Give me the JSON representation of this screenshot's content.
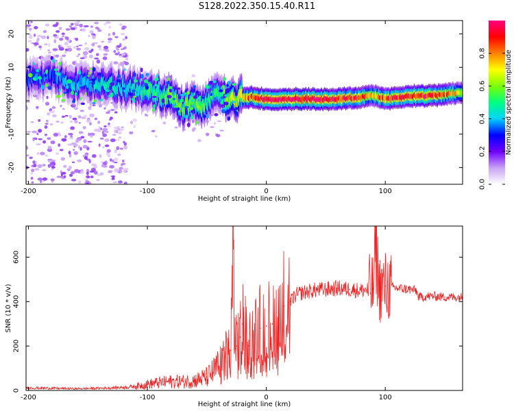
{
  "title": "S128.2022.350.15.40.R11",
  "chart_data": [
    {
      "type": "heatmap",
      "xlabel": "Height of straight line (km)",
      "ylabel": "Frequency (Hz)",
      "xlim": [
        -202,
        165
      ],
      "ylim": [
        -25,
        24
      ],
      "x_ticks": [
        -200,
        -100,
        0,
        100
      ],
      "y_ticks": [
        -20,
        -10,
        0,
        10,
        20
      ],
      "colorbar": {
        "label": "Normalized spectral amplitude",
        "range": [
          0,
          1
        ],
        "ticks": [
          "0.0",
          "0.2",
          "0.4",
          "0.6",
          "0.8"
        ],
        "colors": [
          "#ffffff",
          "#c9a2f5",
          "#7000ff",
          "#0000ff",
          "#00d2ff",
          "#00ff80",
          "#7cff00",
          "#ffff00",
          "#ff8000",
          "#ff0000",
          "#ff0080"
        ]
      },
      "ridge": {
        "x": [
          -200,
          -180,
          -160,
          -140,
          -120,
          -100,
          -90,
          -80,
          -70,
          -60,
          -50,
          -40,
          -30,
          -20,
          -10,
          0,
          20,
          40,
          60,
          80,
          90,
          100,
          120,
          140,
          165
        ],
        "freq_hz": [
          6,
          7,
          5,
          5,
          4,
          3,
          2,
          1,
          -2,
          -1,
          -1,
          2,
          0,
          1,
          1,
          0.5,
          0.5,
          0.5,
          0.5,
          1,
          1.5,
          0.5,
          1.5,
          1.5,
          2.5
        ],
        "amplitude": [
          0.35,
          0.35,
          0.4,
          0.45,
          0.45,
          0.5,
          0.55,
          0.6,
          0.6,
          0.6,
          0.55,
          0.5,
          0.65,
          0.8,
          0.9,
          1.0,
          1.0,
          1.0,
          0.95,
          0.9,
          0.75,
          0.9,
          0.95,
          0.95,
          0.7
        ]
      }
    },
    {
      "type": "line",
      "xlabel": "Height of straight line (km)",
      "ylabel": "SNR (10 * v/v)",
      "xlim": [
        -202,
        165
      ],
      "ylim": [
        0,
        740
      ],
      "x_ticks": [
        -200,
        -100,
        0,
        100
      ],
      "y_ticks": [
        0,
        200,
        400,
        600
      ],
      "color": "#ee2222",
      "series": [
        {
          "x": [
            -202,
            -180,
            -160,
            -140,
            -120,
            -110,
            -100,
            -90,
            -80,
            -70,
            -60,
            -50,
            -45,
            -40,
            -35,
            -30,
            -28,
            -26,
            -25,
            -22,
            -20,
            -15,
            -10,
            -5,
            0,
            5,
            10,
            15,
            20,
            25,
            30,
            40,
            50,
            60,
            70,
            80,
            90,
            92,
            95,
            100,
            110,
            120,
            126,
            128,
            140,
            150,
            165
          ],
          "values": [
            12,
            10,
            8,
            10,
            14,
            18,
            28,
            35,
            40,
            40,
            45,
            60,
            80,
            110,
            150,
            180,
            735,
            190,
            200,
            240,
            300,
            200,
            250,
            280,
            290,
            300,
            330,
            380,
            400,
            430,
            440,
            450,
            455,
            460,
            455,
            450,
            460,
            660,
            460,
            470,
            460,
            455,
            450,
            420,
            425,
            420,
            420
          ]
        }
      ]
    }
  ]
}
